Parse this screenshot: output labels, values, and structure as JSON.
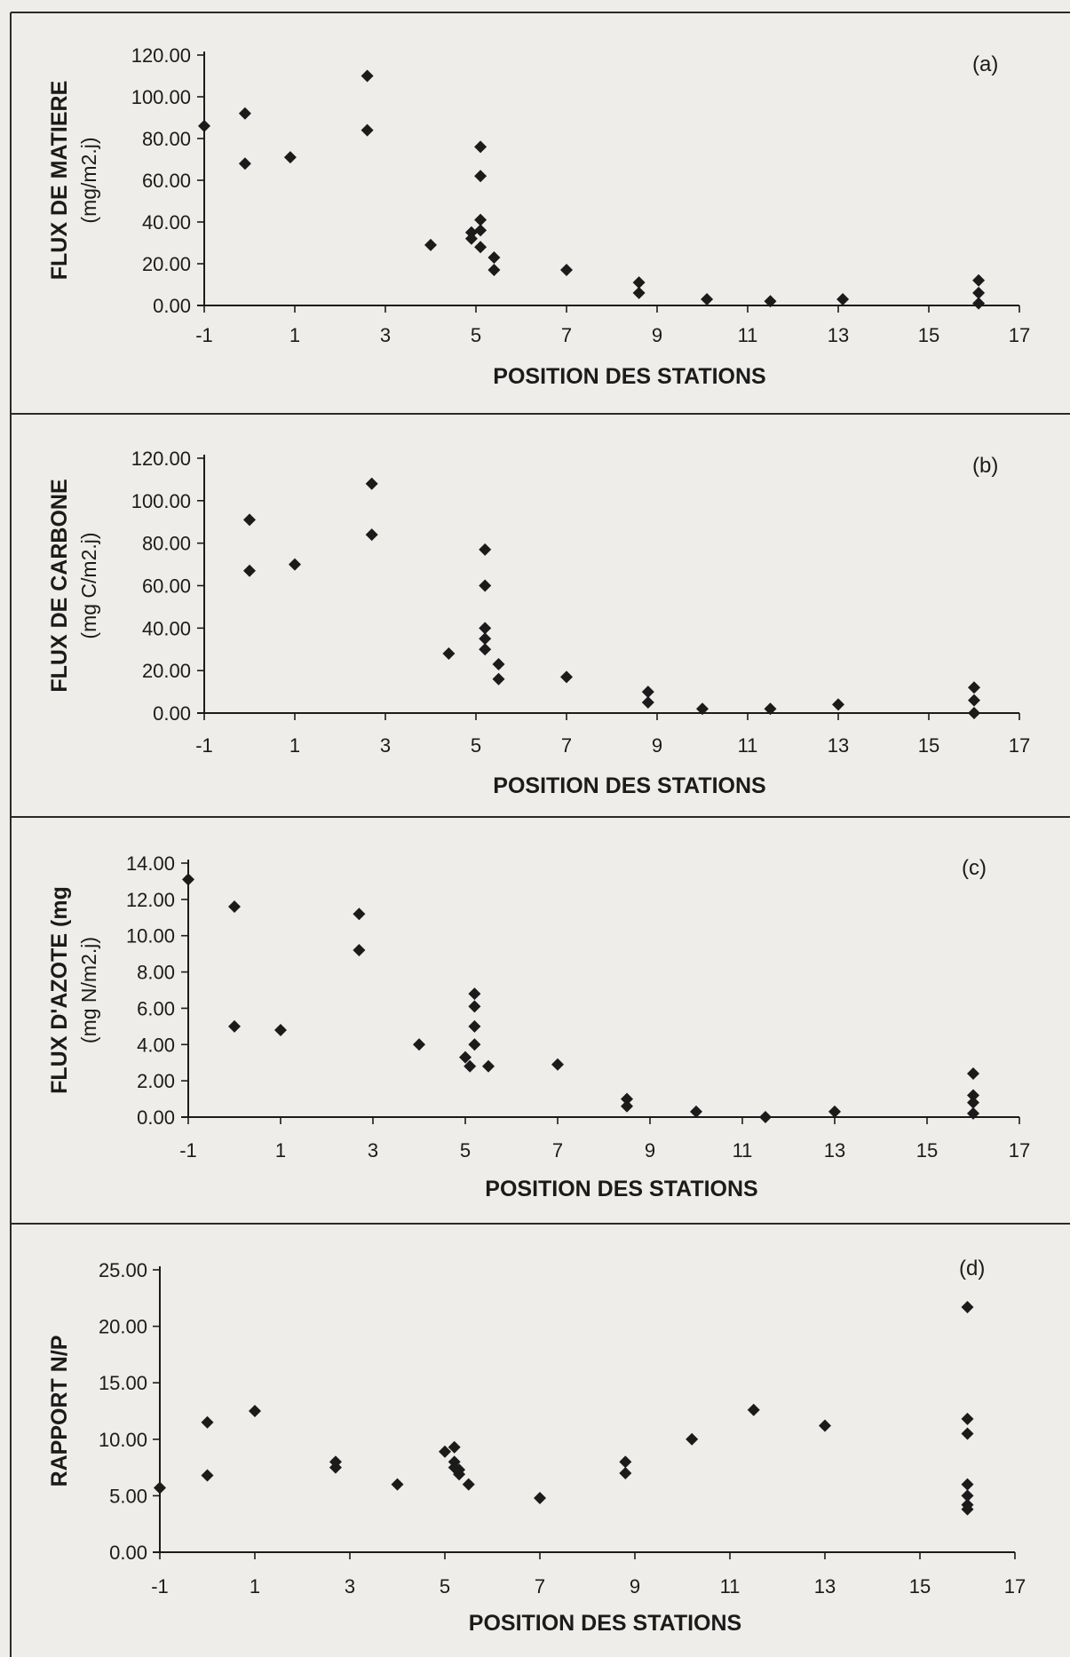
{
  "chart_data": [
    {
      "type": "scatter",
      "panel_label": "(a)",
      "xlabel": "POSITION DES STATIONS",
      "ylabel_line1": "FLUX DE MATIERE",
      "ylabel_line2": "(mg/m2.j)",
      "xlim": [
        -1,
        17
      ],
      "ylim": [
        0,
        120
      ],
      "x_ticks": [
        "-1",
        "1",
        "3",
        "5",
        "7",
        "9",
        "11",
        "13",
        "15",
        "17"
      ],
      "y_ticks": [
        "0.00",
        "20.00",
        "40.00",
        "60.00",
        "80.00",
        "100.00",
        "120.00"
      ],
      "y_tick_values": [
        0,
        20,
        40,
        60,
        80,
        100,
        120
      ],
      "grid": false,
      "points": [
        {
          "x": -1.0,
          "y": 86
        },
        {
          "x": -0.1,
          "y": 92
        },
        {
          "x": -0.1,
          "y": 68
        },
        {
          "x": 0.9,
          "y": 71
        },
        {
          "x": 2.6,
          "y": 110
        },
        {
          "x": 2.6,
          "y": 84
        },
        {
          "x": 4.0,
          "y": 29
        },
        {
          "x": 4.9,
          "y": 35
        },
        {
          "x": 4.9,
          "y": 32
        },
        {
          "x": 5.1,
          "y": 76
        },
        {
          "x": 5.1,
          "y": 62
        },
        {
          "x": 5.1,
          "y": 41
        },
        {
          "x": 5.1,
          "y": 36
        },
        {
          "x": 5.1,
          "y": 28
        },
        {
          "x": 5.4,
          "y": 23
        },
        {
          "x": 5.4,
          "y": 17
        },
        {
          "x": 7.0,
          "y": 17
        },
        {
          "x": 8.6,
          "y": 11
        },
        {
          "x": 8.6,
          "y": 6
        },
        {
          "x": 10.1,
          "y": 3
        },
        {
          "x": 11.5,
          "y": 2
        },
        {
          "x": 13.1,
          "y": 3
        },
        {
          "x": 16.1,
          "y": 12
        },
        {
          "x": 16.1,
          "y": 6
        },
        {
          "x": 16.1,
          "y": 1
        }
      ]
    },
    {
      "type": "scatter",
      "panel_label": "(b)",
      "xlabel": "POSITION DES STATIONS",
      "ylabel_line1": "FLUX DE CARBONE",
      "ylabel_line2": "(mg C/m2.j)",
      "xlim": [
        -1,
        17
      ],
      "ylim": [
        0,
        120
      ],
      "x_ticks": [
        "-1",
        "1",
        "3",
        "5",
        "7",
        "9",
        "11",
        "13",
        "15",
        "17"
      ],
      "y_ticks": [
        "0.00",
        "20.00",
        "40.00",
        "60.00",
        "80.00",
        "100.00",
        "120.00"
      ],
      "y_tick_values": [
        0,
        20,
        40,
        60,
        80,
        100,
        120
      ],
      "grid": false,
      "points": [
        {
          "x": 0.0,
          "y": 91
        },
        {
          "x": 0.0,
          "y": 67
        },
        {
          "x": 1.0,
          "y": 70
        },
        {
          "x": 2.7,
          "y": 108
        },
        {
          "x": 2.7,
          "y": 84
        },
        {
          "x": 4.4,
          "y": 28
        },
        {
          "x": 5.2,
          "y": 77
        },
        {
          "x": 5.2,
          "y": 60
        },
        {
          "x": 5.2,
          "y": 40
        },
        {
          "x": 5.2,
          "y": 35
        },
        {
          "x": 5.2,
          "y": 30
        },
        {
          "x": 5.5,
          "y": 23
        },
        {
          "x": 5.5,
          "y": 16
        },
        {
          "x": 7.0,
          "y": 17
        },
        {
          "x": 8.8,
          "y": 10
        },
        {
          "x": 8.8,
          "y": 5
        },
        {
          "x": 10.0,
          "y": 2
        },
        {
          "x": 11.5,
          "y": 2
        },
        {
          "x": 13.0,
          "y": 4
        },
        {
          "x": 16.0,
          "y": 12
        },
        {
          "x": 16.0,
          "y": 6
        },
        {
          "x": 16.0,
          "y": 0
        }
      ]
    },
    {
      "type": "scatter",
      "panel_label": "(c)",
      "xlabel": "POSITION DES STATIONS",
      "ylabel_line1": "FLUX D'AZOTE (mg",
      "ylabel_line2": "(mg N/m2.j)",
      "xlim": [
        -1,
        17
      ],
      "ylim": [
        0,
        14
      ],
      "x_ticks": [
        "-1",
        "1",
        "3",
        "5",
        "7",
        "9",
        "11",
        "13",
        "15",
        "17"
      ],
      "y_ticks": [
        "0.00",
        "2.00",
        "4.00",
        "6.00",
        "8.00",
        "10.00",
        "12.00",
        "14.00"
      ],
      "y_tick_values": [
        0,
        2,
        4,
        6,
        8,
        10,
        12,
        14
      ],
      "grid": false,
      "points": [
        {
          "x": -1.0,
          "y": 13.1
        },
        {
          "x": 0.0,
          "y": 11.6
        },
        {
          "x": 0.0,
          "y": 5.0
        },
        {
          "x": 1.0,
          "y": 4.8
        },
        {
          "x": 2.7,
          "y": 11.2
        },
        {
          "x": 2.7,
          "y": 9.2
        },
        {
          "x": 4.0,
          "y": 4.0
        },
        {
          "x": 5.2,
          "y": 6.8
        },
        {
          "x": 5.2,
          "y": 6.1
        },
        {
          "x": 5.2,
          "y": 5.0
        },
        {
          "x": 5.2,
          "y": 4.0
        },
        {
          "x": 5.0,
          "y": 3.3
        },
        {
          "x": 5.1,
          "y": 2.8
        },
        {
          "x": 5.5,
          "y": 2.8
        },
        {
          "x": 7.0,
          "y": 2.9
        },
        {
          "x": 8.5,
          "y": 1.0
        },
        {
          "x": 8.5,
          "y": 0.6
        },
        {
          "x": 10.0,
          "y": 0.3
        },
        {
          "x": 11.5,
          "y": 0.0
        },
        {
          "x": 13.0,
          "y": 0.3
        },
        {
          "x": 16.0,
          "y": 2.4
        },
        {
          "x": 16.0,
          "y": 1.2
        },
        {
          "x": 16.0,
          "y": 0.8
        },
        {
          "x": 16.0,
          "y": 0.2
        }
      ]
    },
    {
      "type": "scatter",
      "panel_label": "(d)",
      "xlabel": "POSITION DES STATIONS",
      "ylabel_line1": "RAPPORT N/P",
      "ylabel_line2": "",
      "xlim": [
        -1,
        17
      ],
      "ylim": [
        0,
        25
      ],
      "x_ticks": [
        "-1",
        "1",
        "3",
        "5",
        "7",
        "9",
        "11",
        "13",
        "15",
        "17"
      ],
      "y_ticks": [
        "0.00",
        "5.00",
        "10.00",
        "15.00",
        "20.00",
        "25.00"
      ],
      "y_tick_values": [
        0,
        5,
        10,
        15,
        20,
        25
      ],
      "grid": false,
      "points": [
        {
          "x": -1.0,
          "y": 5.7
        },
        {
          "x": 0.0,
          "y": 11.5
        },
        {
          "x": 0.0,
          "y": 6.8
        },
        {
          "x": 1.0,
          "y": 12.5
        },
        {
          "x": 2.7,
          "y": 8.0
        },
        {
          "x": 2.7,
          "y": 7.5
        },
        {
          "x": 4.0,
          "y": 6.0
        },
        {
          "x": 5.0,
          "y": 8.9
        },
        {
          "x": 5.2,
          "y": 9.3
        },
        {
          "x": 5.2,
          "y": 8.0
        },
        {
          "x": 5.2,
          "y": 7.5
        },
        {
          "x": 5.3,
          "y": 7.3
        },
        {
          "x": 5.3,
          "y": 6.9
        },
        {
          "x": 5.5,
          "y": 6.0
        },
        {
          "x": 7.0,
          "y": 4.8
        },
        {
          "x": 8.8,
          "y": 8.0
        },
        {
          "x": 8.8,
          "y": 7.0
        },
        {
          "x": 10.2,
          "y": 10.0
        },
        {
          "x": 11.5,
          "y": 12.6
        },
        {
          "x": 13.0,
          "y": 11.2
        },
        {
          "x": 16.0,
          "y": 21.7
        },
        {
          "x": 16.0,
          "y": 11.8
        },
        {
          "x": 16.0,
          "y": 10.5
        },
        {
          "x": 16.0,
          "y": 6.0
        },
        {
          "x": 16.0,
          "y": 5.0
        },
        {
          "x": 16.0,
          "y": 4.2
        },
        {
          "x": 16.0,
          "y": 3.8
        }
      ]
    }
  ]
}
